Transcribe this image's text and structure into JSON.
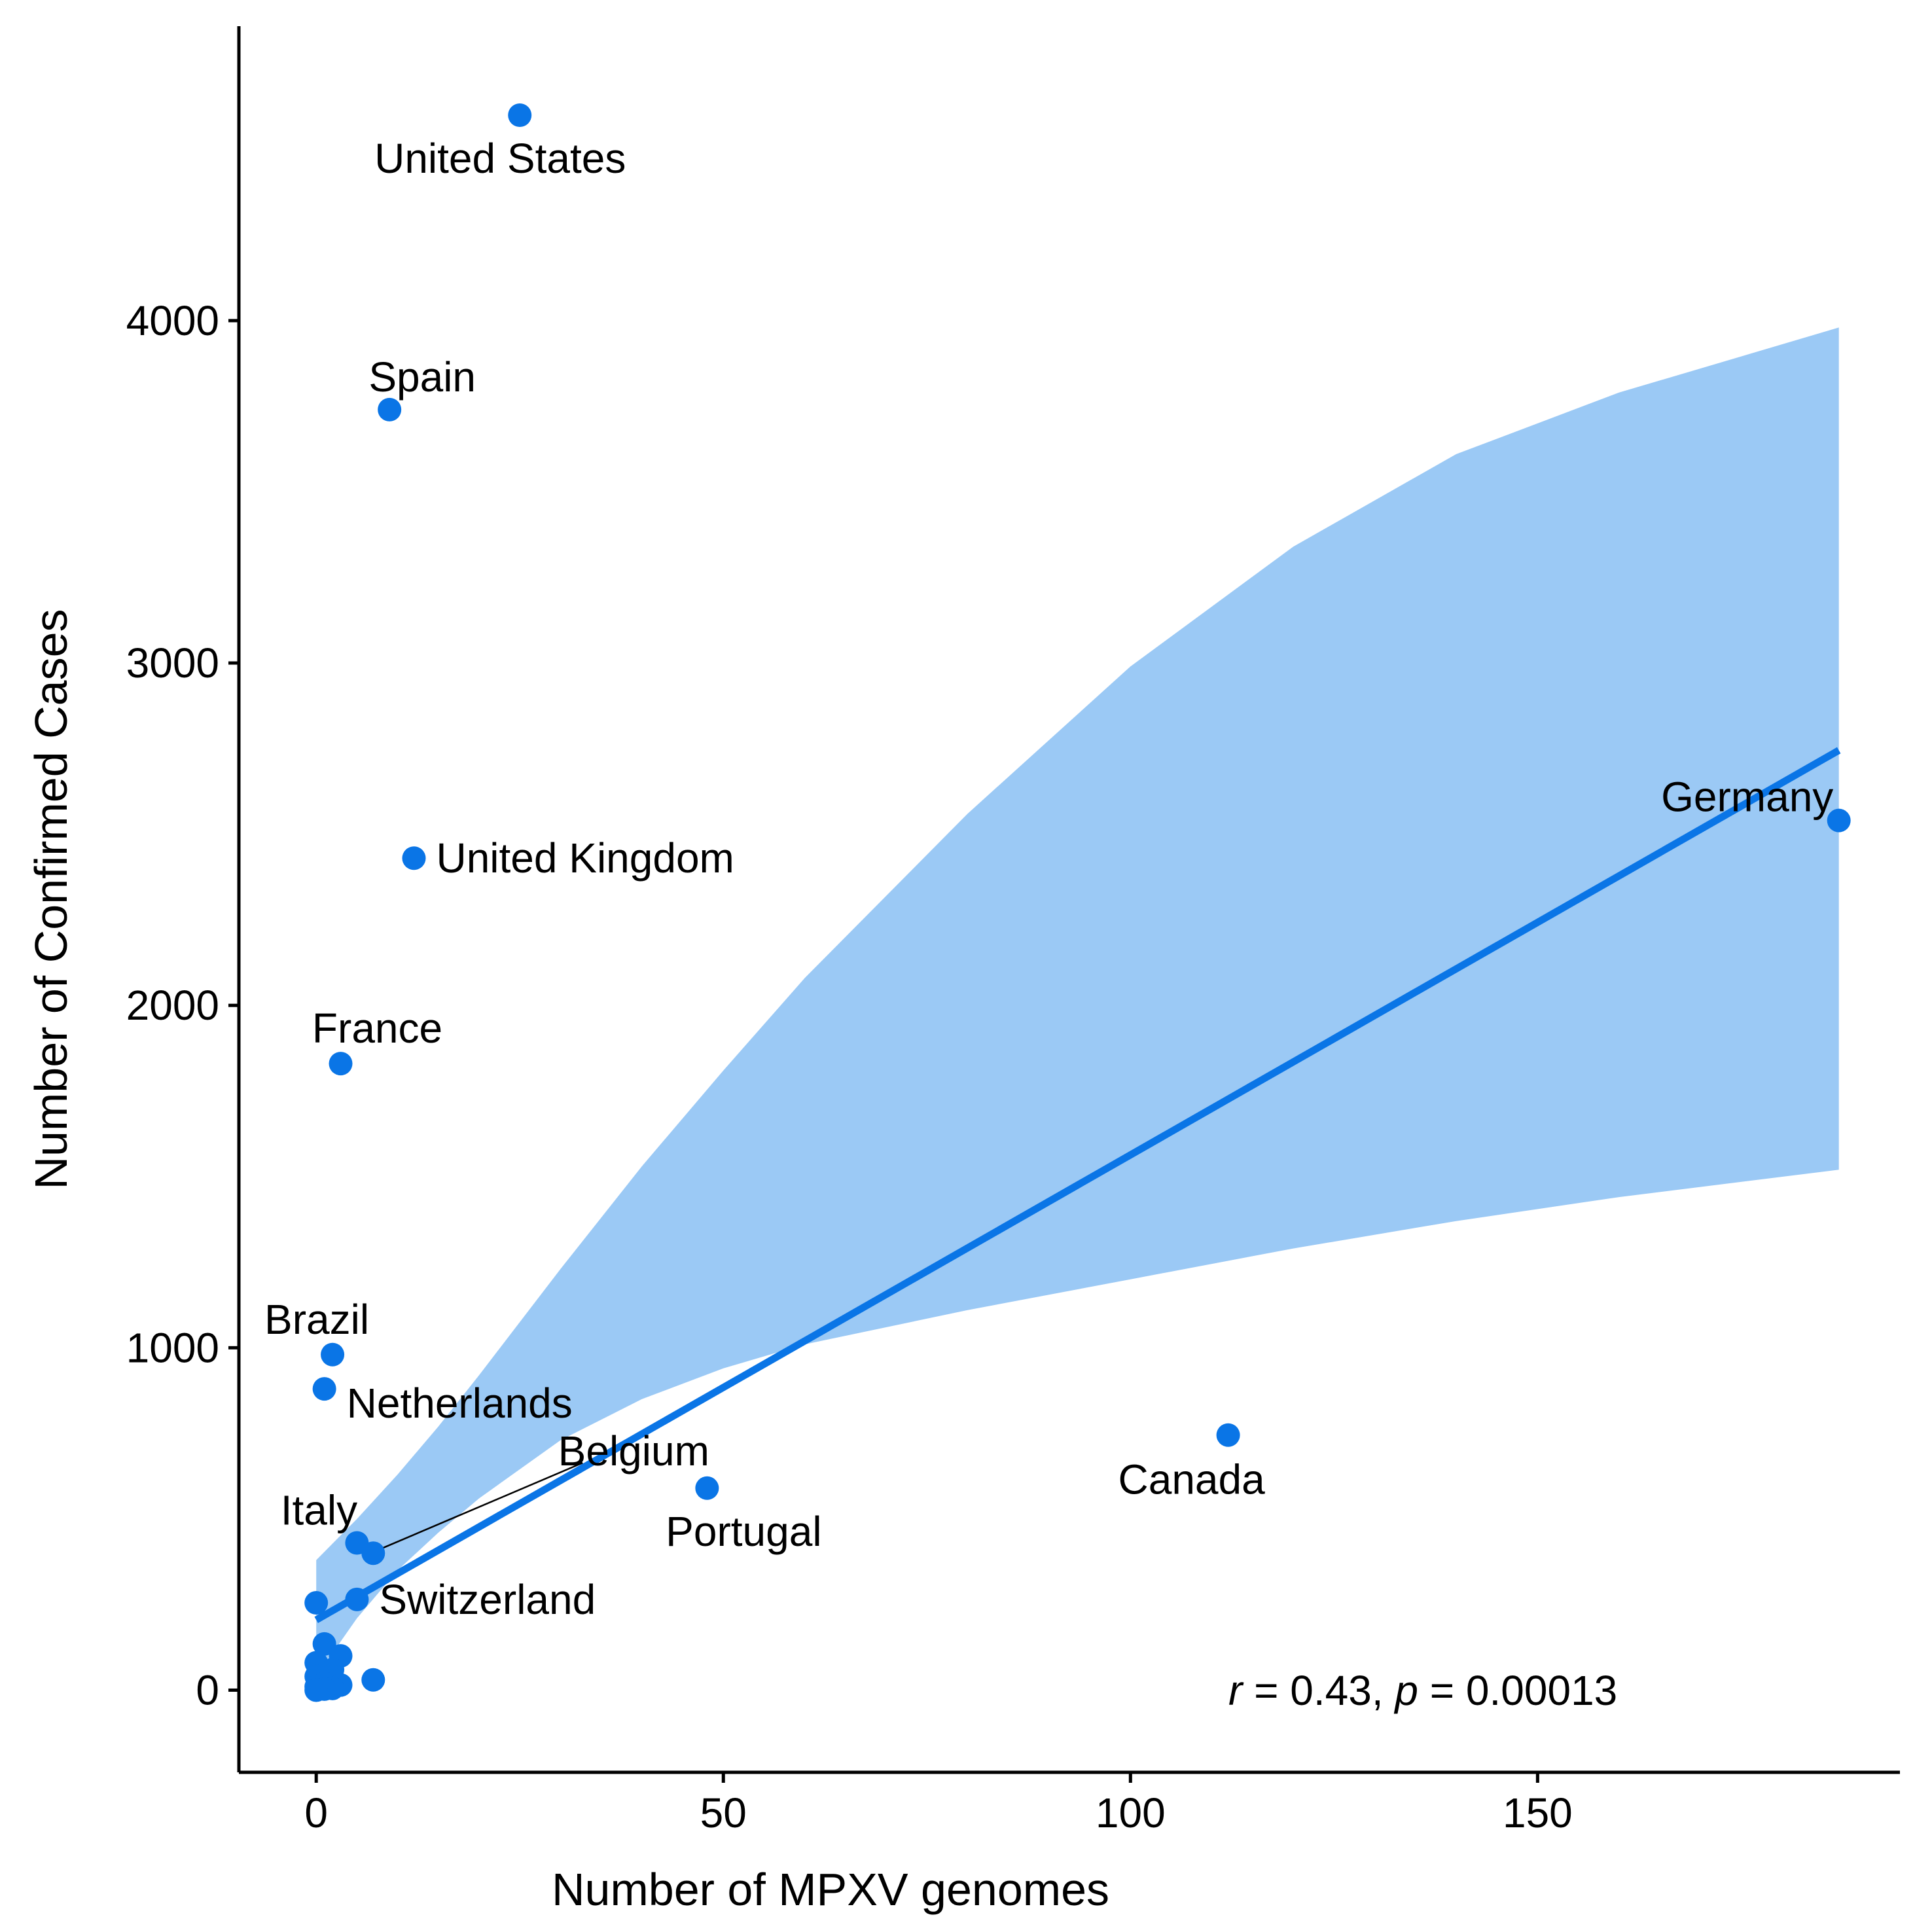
{
  "chart_data": {
    "type": "scatter",
    "title": "",
    "xlabel": "Number of MPXV genomes",
    "ylabel": "Number of Confirmed Cases",
    "xlim": [
      -9.5,
      194.5
    ],
    "ylim": [
      -240,
      4860
    ],
    "x_ticks": [
      0,
      50,
      100,
      150
    ],
    "y_ticks": [
      0,
      1000,
      2000,
      3000,
      4000
    ],
    "grid": false,
    "legend": "none",
    "colors": {
      "points": "#0a75e6",
      "fit_line": "#0a75e6",
      "confidence_band": "#9bc9f5",
      "axes": "#000000"
    },
    "points": [
      {
        "x": 25,
        "y": 4600,
        "label": "United States"
      },
      {
        "x": 9,
        "y": 3740,
        "label": "Spain"
      },
      {
        "x": 187,
        "y": 2540,
        "label": "Germany"
      },
      {
        "x": 12,
        "y": 2430,
        "label": "United Kingdom"
      },
      {
        "x": 3,
        "y": 1830,
        "label": "France"
      },
      {
        "x": 2,
        "y": 980,
        "label": "Brazil"
      },
      {
        "x": 1,
        "y": 880,
        "label": "Netherlands"
      },
      {
        "x": 112,
        "y": 745,
        "label": "Canada"
      },
      {
        "x": 48,
        "y": 590,
        "label": "Portugal"
      },
      {
        "x": 5,
        "y": 430,
        "label": "Italy"
      },
      {
        "x": 7,
        "y": 400,
        "label": "Belgium"
      },
      {
        "x": 5,
        "y": 265,
        "label": "Switzerland"
      },
      {
        "x": 0,
        "y": 255,
        "label": ""
      },
      {
        "x": 1,
        "y": 135,
        "label": ""
      },
      {
        "x": 3,
        "y": 100,
        "label": ""
      },
      {
        "x": 0,
        "y": 80,
        "label": ""
      },
      {
        "x": 2,
        "y": 60,
        "label": ""
      },
      {
        "x": 0,
        "y": 40,
        "label": ""
      },
      {
        "x": 7,
        "y": 30,
        "label": ""
      },
      {
        "x": 1,
        "y": 20,
        "label": ""
      },
      {
        "x": 3,
        "y": 15,
        "label": ""
      },
      {
        "x": 0,
        "y": 10,
        "label": ""
      },
      {
        "x": 2,
        "y": 5,
        "label": ""
      },
      {
        "x": 1,
        "y": 3,
        "label": ""
      },
      {
        "x": 0,
        "y": 0,
        "label": ""
      }
    ],
    "fit_line": {
      "x": [
        0,
        187
      ],
      "y": [
        205,
        2745
      ]
    },
    "confidence_band": {
      "x": [
        0,
        5,
        10,
        15,
        20,
        30,
        40,
        50,
        60,
        80,
        100,
        120,
        140,
        160,
        187
      ],
      "upper": [
        380,
        500,
        630,
        770,
        920,
        1230,
        1530,
        1810,
        2080,
        2560,
        2990,
        3340,
        3610,
        3790,
        3980
      ],
      "lower": [
        40,
        210,
        350,
        460,
        560,
        730,
        850,
        940,
        1010,
        1110,
        1200,
        1290,
        1370,
        1440,
        1520
      ]
    },
    "annotation": {
      "r_symbol": "r",
      "r_text": " = 0.43, ",
      "p_symbol": "p",
      "p_text": " = 0.00013"
    }
  }
}
